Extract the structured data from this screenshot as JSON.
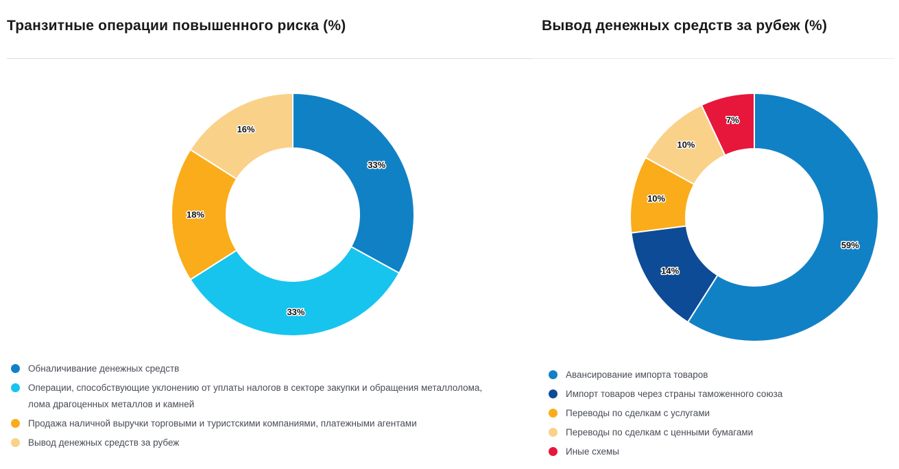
{
  "page": {
    "background": "#ffffff",
    "title_color": "#1a1a1a",
    "legend_text_color": "#474c55",
    "slice_label_color": "#111111",
    "slice_gap_color": "#ffffff"
  },
  "chart_data": [
    {
      "type": "pie",
      "variant": "donut",
      "title": "Транзитные операции повышенного риска (%)",
      "categories": [
        "Обналичивание денежных средств",
        "Операции, способствующие уклонению от уплаты налогов в секторе закупки и обращения металлолома, лома драгоценных металлов и камней",
        "Продажа наличной выручки торговыми и туристскими компаниями, платежными агентами",
        "Вывод денежных средств за рубеж"
      ],
      "values": [
        33,
        33,
        18,
        16
      ],
      "labels": [
        "33%",
        "33%",
        "18%",
        "16%"
      ],
      "colors": [
        "#1181C6",
        "#17C4EE",
        "#FBAC1A",
        "#FAD189"
      ],
      "start_angle_deg": 0,
      "direction": "clockwise",
      "legend_position": "bottom"
    },
    {
      "type": "pie",
      "variant": "donut",
      "title": "Вывод денежных средств за рубеж (%)",
      "categories": [
        "Авансирование импорта товаров",
        "Импорт товаров через страны таможенного союза",
        "Переводы по сделкам с услугами",
        "Переводы по сделкам с ценными бумагами",
        "Иные схемы"
      ],
      "values": [
        59,
        14,
        10,
        10,
        7
      ],
      "labels": [
        "59%",
        "14%",
        "10%",
        "10%",
        "7%"
      ],
      "colors": [
        "#1181C6",
        "#0E4B96",
        "#FBAC1A",
        "#FAD189",
        "#E6173B"
      ],
      "start_angle_deg": 0,
      "direction": "clockwise",
      "legend_position": "bottom"
    }
  ]
}
